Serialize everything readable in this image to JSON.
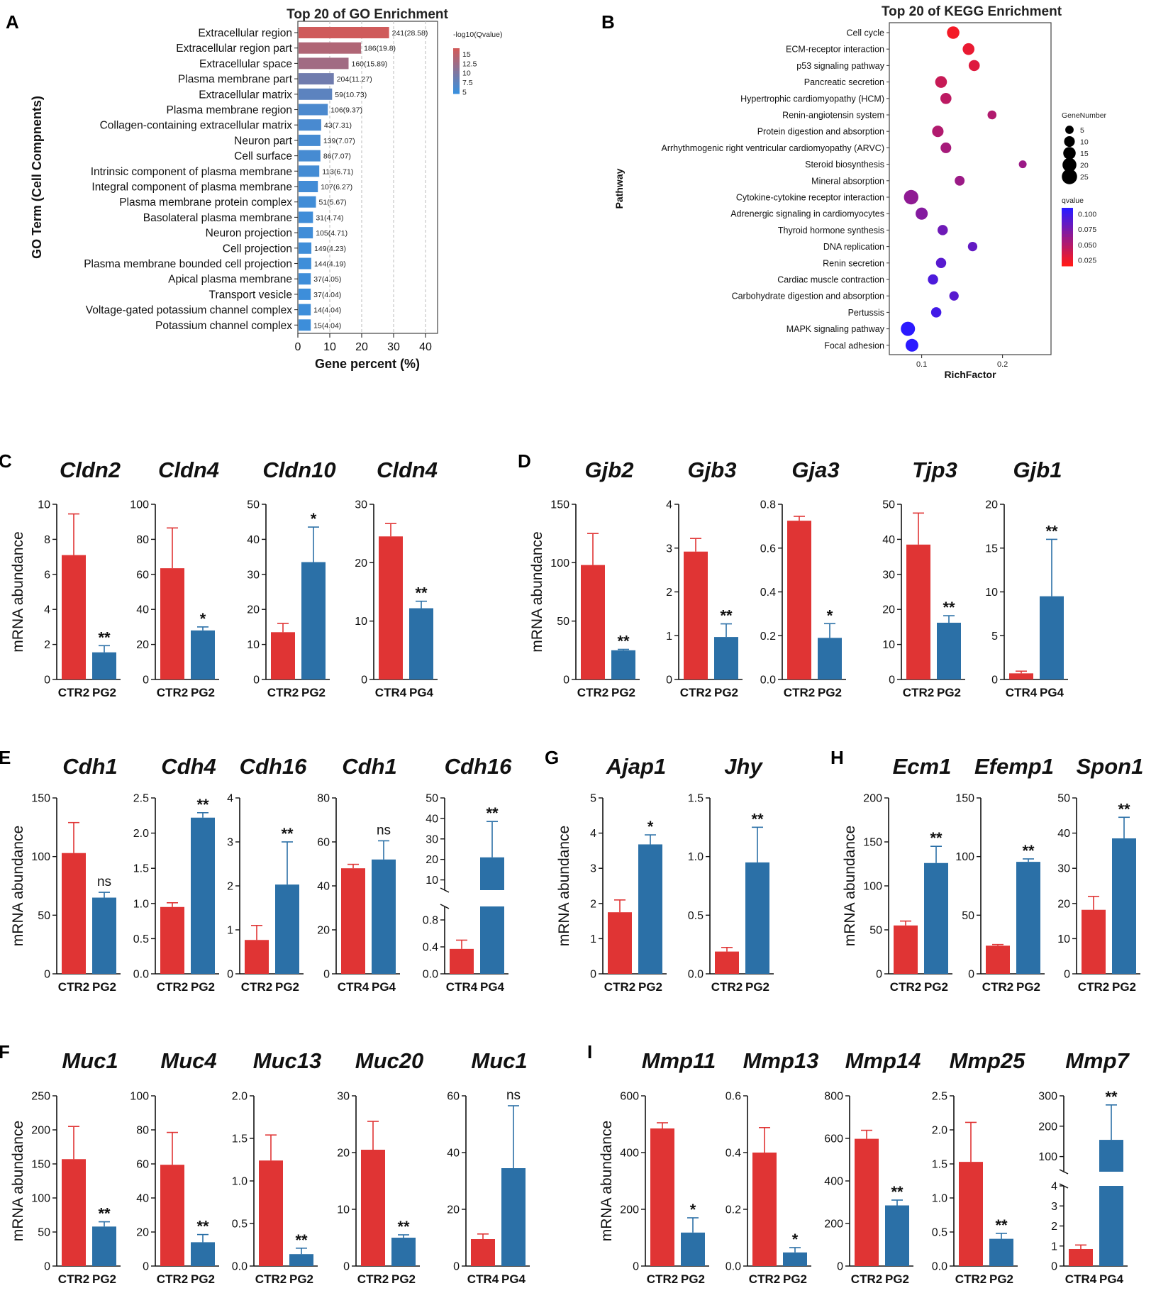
{
  "colors": {
    "ctr": "#e03434",
    "treat": "#2b70a7",
    "go_high": "#cf5b5b",
    "go_low": "#3b8fdc",
    "kegg_low": "#ff1a1a",
    "kegg_high": "#2b1aff"
  },
  "chart_data": [
    {
      "id": "A",
      "type": "bar",
      "orientation": "horizontal",
      "panel_label": "A",
      "title": "Top 20 of GO Enrichment",
      "xlabel": "Gene percent (%)",
      "ylabel": "GO Term (Cell Compnents)",
      "xlim": [
        0,
        40
      ],
      "xticks": [
        "0",
        "10",
        "20",
        "30",
        "40"
      ],
      "legend_title": "-log10(Qvalue)",
      "legend_values": [
        "15",
        "12.5",
        "10",
        "7.5",
        "5"
      ],
      "categories": [
        "Extracellular region",
        "Extracellular region part",
        "Extracellular space",
        "Plasma membrane part",
        "Extracellular matrix",
        "Plasma membrane region",
        "Collagen-containing extracellular matrix",
        "Neuron part",
        "Cell surface",
        "Intrinsic component of plasma membrane",
        "Integral component of plasma membrane",
        "Plasma membrane protein complex",
        "Basolateral plasma membrane",
        "Neuron projection",
        "Cell projection",
        "Plasma membrane bounded cell projection",
        "Apical plasma membrane",
        "Transport vesicle",
        "Voltage-gated potassium channel complex",
        "Potassium channel complex"
      ],
      "values": [
        28.58,
        19.8,
        15.89,
        11.27,
        10.73,
        9.37,
        7.31,
        7.07,
        7.07,
        6.71,
        6.27,
        5.67,
        4.74,
        4.71,
        4.23,
        4.19,
        4.05,
        4.04,
        4.04,
        4.04
      ],
      "gene_counts": [
        241,
        186,
        160,
        204,
        59,
        106,
        43,
        139,
        86,
        113,
        107,
        51,
        31,
        105,
        149,
        144,
        37,
        37,
        14,
        15
      ],
      "bar_labels": [
        "241(28.58)",
        "186(19.8)",
        "160(15.89)",
        "204(11.27)",
        "59(10.73)",
        "106(9.37)",
        "43(7.31)",
        "139(7.07)",
        "86(7.07)",
        "113(6.71)",
        "107(6.27)",
        "51(5.67)",
        "31(4.74)",
        "105(4.71)",
        "149(4.23)",
        "144(4.19)",
        "37(4.05)",
        "37(4.04)",
        "14(4.04)",
        "15(4.04)"
      ],
      "neglog10q": [
        16.5,
        14.0,
        12.8,
        8.8,
        7.2,
        5.8,
        5.6,
        5.4,
        5.4,
        5.2,
        5.1,
        5.0,
        4.9,
        4.9,
        4.8,
        4.8,
        4.8,
        4.7,
        4.7,
        4.7
      ]
    },
    {
      "id": "B",
      "type": "scatter",
      "subtype": "bubble",
      "panel_label": "B",
      "title": "Top 20 of KEGG Enrichment",
      "xlabel": "RichFactor",
      "ylabel": "Pathway",
      "xlim": [
        0.06,
        0.26
      ],
      "xticks": [
        "0.1",
        "0.2"
      ],
      "size_legend_title": "GeneNumber",
      "size_legend_values": [
        "5",
        "10",
        "15",
        "20",
        "25"
      ],
      "color_legend_title": "qvalue",
      "color_legend_values": [
        "0.100",
        "0.075",
        "0.050",
        "0.025"
      ],
      "pathways": [
        "Cell cycle",
        "ECM-receptor interaction",
        "p53 signaling pathway",
        "Pancreatic secretion",
        "Hypertrophic cardiomyopathy (HCM)",
        "Renin-angiotensin system",
        "Protein digestion and absorption",
        "Arrhythmogenic right ventricular cardiomyopathy (ARVC)",
        "Steroid biosynthesis",
        "Mineral absorption",
        "Cytokine-cytokine receptor interaction",
        "Adrenergic signaling in cardiomyocytes",
        "Thyroid hormone synthesis",
        "DNA replication",
        "Renin secretion",
        "Cardiac muscle contraction",
        "Carbohydrate digestion and absorption",
        "Pertussis",
        "MAPK signaling pathway",
        "Focal adhesion"
      ],
      "rich_factor": [
        0.139,
        0.158,
        0.165,
        0.124,
        0.13,
        0.187,
        0.12,
        0.13,
        0.225,
        0.147,
        0.087,
        0.1,
        0.126,
        0.163,
        0.124,
        0.114,
        0.14,
        0.118,
        0.083,
        0.088
      ],
      "gene_number": [
        15,
        13,
        11,
        13,
        11,
        6,
        12,
        10,
        4,
        8,
        22,
        14,
        9,
        7,
        9,
        9,
        7,
        9,
        21,
        16
      ],
      "qvalue": [
        0.02,
        0.025,
        0.03,
        0.04,
        0.045,
        0.05,
        0.05,
        0.055,
        0.06,
        0.06,
        0.065,
        0.07,
        0.08,
        0.085,
        0.09,
        0.095,
        0.09,
        0.1,
        0.11,
        0.11
      ]
    },
    {
      "id": "C1",
      "type": "bar",
      "panel_label": "C",
      "ylabel": "mRNA abundance",
      "title": "Cldn2",
      "categories": [
        "CTR2",
        "PG2"
      ],
      "values": [
        7.1,
        1.55
      ],
      "errors": [
        2.35,
        0.38
      ],
      "ylim": [
        0,
        10
      ],
      "yticks": [
        "0",
        "2",
        "4",
        "6",
        "8",
        "10"
      ],
      "sig": "**"
    },
    {
      "id": "C2",
      "type": "bar",
      "title": "Cldn4",
      "categories": [
        "CTR2",
        "PG2"
      ],
      "values": [
        63.5,
        28
      ],
      "errors": [
        23,
        2
      ],
      "ylim": [
        0,
        100
      ],
      "yticks": [
        "0",
        "20",
        "40",
        "60",
        "80",
        "100"
      ],
      "sig": "*"
    },
    {
      "id": "C3",
      "type": "bar",
      "title": "Cldn10",
      "categories": [
        "CTR2",
        "PG2"
      ],
      "values": [
        13.5,
        33.5
      ],
      "errors": [
        2.5,
        10
      ],
      "ylim": [
        0,
        50
      ],
      "yticks": [
        "0",
        "10",
        "20",
        "30",
        "40",
        "50"
      ],
      "sig": "*"
    },
    {
      "id": "C4",
      "type": "bar",
      "title": "Cldn4",
      "categories": [
        "CTR4",
        "PG4"
      ],
      "values": [
        24.5,
        12.2
      ],
      "errors": [
        2.2,
        1.2
      ],
      "ylim": [
        0,
        30
      ],
      "yticks": [
        "0",
        "10",
        "20",
        "30"
      ],
      "sig": "**"
    },
    {
      "id": "D1",
      "type": "bar",
      "panel_label": "D",
      "ylabel": "mRNA abundance",
      "title": "Gjb2",
      "categories": [
        "CTR2",
        "PG2"
      ],
      "values": [
        98,
        25
      ],
      "errors": [
        27,
        0.8
      ],
      "ylim": [
        0,
        150
      ],
      "yticks": [
        "0",
        "50",
        "100",
        "150"
      ],
      "sig": "**"
    },
    {
      "id": "D2",
      "type": "bar",
      "title": "Gjb3",
      "categories": [
        "CTR2",
        "PG2"
      ],
      "values": [
        2.92,
        0.97
      ],
      "errors": [
        0.3,
        0.3
      ],
      "ylim": [
        0,
        4
      ],
      "yticks": [
        "0",
        "1",
        "2",
        "3",
        "4"
      ],
      "sig": "**"
    },
    {
      "id": "D3",
      "type": "bar",
      "title": "Gja3",
      "categories": [
        "CTR2",
        "PG2"
      ],
      "values": [
        0.725,
        0.19
      ],
      "errors": [
        0.02,
        0.065
      ],
      "ylim": [
        0,
        0.8
      ],
      "yticks": [
        "0.0",
        "0.2",
        "0.4",
        "0.6",
        "0.8"
      ],
      "sig": "*"
    },
    {
      "id": "D4",
      "type": "bar",
      "title": "Tjp3",
      "categories": [
        "CTR2",
        "PG2"
      ],
      "values": [
        38.5,
        16.2
      ],
      "errors": [
        9,
        2
      ],
      "ylim": [
        0,
        50
      ],
      "yticks": [
        "0",
        "10",
        "20",
        "30",
        "40",
        "50"
      ],
      "sig": "**"
    },
    {
      "id": "D5",
      "type": "bar",
      "title": "Gjb1",
      "categories": [
        "CTR4",
        "PG4"
      ],
      "values": [
        0.7,
        9.5
      ],
      "errors": [
        0.25,
        6.5
      ],
      "ylim": [
        0,
        20
      ],
      "yticks": [
        "0",
        "5",
        "10",
        "15",
        "20"
      ],
      "sig": "**"
    },
    {
      "id": "E1",
      "type": "bar",
      "panel_label": "E",
      "ylabel": "mRNA abundance",
      "title": "Cdh1",
      "categories": [
        "CTR2",
        "PG2"
      ],
      "values": [
        103,
        65
      ],
      "errors": [
        26,
        4.5
      ],
      "ylim": [
        0,
        150
      ],
      "yticks": [
        "0",
        "50",
        "100",
        "150"
      ],
      "sig": "ns"
    },
    {
      "id": "E2",
      "type": "bar",
      "title": "Cdh4",
      "categories": [
        "CTR2",
        "PG2"
      ],
      "values": [
        0.95,
        2.22
      ],
      "errors": [
        0.06,
        0.07
      ],
      "ylim": [
        0,
        2.5
      ],
      "yticks": [
        "0.0",
        "0.5",
        "1.0",
        "1.5",
        "2.0",
        "2.5"
      ],
      "sig": "**"
    },
    {
      "id": "E3",
      "type": "bar",
      "title": "Cdh16",
      "categories": [
        "CTR2",
        "PG2"
      ],
      "values": [
        0.77,
        2.03
      ],
      "errors": [
        0.33,
        0.97
      ],
      "ylim": [
        0,
        4
      ],
      "yticks": [
        "0",
        "1",
        "2",
        "3",
        "4"
      ],
      "sig": "**"
    },
    {
      "id": "E4",
      "type": "bar",
      "title": "Cdh1",
      "categories": [
        "CTR4",
        "PG4"
      ],
      "values": [
        48,
        52
      ],
      "errors": [
        1.8,
        8.5
      ],
      "ylim": [
        0,
        80
      ],
      "yticks": [
        "0",
        "20",
        "40",
        "60",
        "80"
      ],
      "sig": "ns"
    },
    {
      "id": "E5",
      "type": "bar",
      "broken_axis": true,
      "title": "Cdh16",
      "categories": [
        "CTR4",
        "PG4"
      ],
      "values": [
        0.37,
        21
      ],
      "errors": [
        0.13,
        17.5
      ],
      "lower_range": [
        0,
        1.0
      ],
      "upper_range": [
        5,
        50
      ],
      "yticks_lower": [
        "0.0",
        "0.4",
        "0.8"
      ],
      "yticks_upper": [
        "10",
        "20",
        "30",
        "40",
        "50"
      ],
      "sig": "**"
    },
    {
      "id": "G1",
      "type": "bar",
      "panel_label": "G",
      "ylabel": "mRNA abundance",
      "title": "Ajap1",
      "categories": [
        "CTR2",
        "PG2"
      ],
      "values": [
        1.75,
        3.68
      ],
      "errors": [
        0.35,
        0.27
      ],
      "ylim": [
        0,
        5
      ],
      "yticks": [
        "0",
        "1",
        "2",
        "3",
        "4",
        "5"
      ],
      "sig": "*"
    },
    {
      "id": "G2",
      "type": "bar",
      "title": "Jhy",
      "categories": [
        "CTR2",
        "PG2"
      ],
      "values": [
        0.19,
        0.95
      ],
      "errors": [
        0.035,
        0.3
      ],
      "ylim": [
        0,
        1.5
      ],
      "yticks": [
        "0.0",
        "0.5",
        "1.0",
        "1.5"
      ],
      "sig": "**"
    },
    {
      "id": "H1",
      "type": "bar",
      "panel_label": "H",
      "ylabel": "mRNA abundance",
      "title": "Ecm1",
      "categories": [
        "CTR2",
        "PG2"
      ],
      "values": [
        55,
        126
      ],
      "errors": [
        5,
        19
      ],
      "ylim": [
        0,
        200
      ],
      "yticks": [
        "0",
        "50",
        "100",
        "150",
        "200"
      ],
      "sig": "**"
    },
    {
      "id": "H2",
      "type": "bar",
      "title": "Efemp1",
      "categories": [
        "CTR2",
        "PG2"
      ],
      "values": [
        24,
        95.5
      ],
      "errors": [
        1,
        2.5
      ],
      "ylim": [
        0,
        150
      ],
      "yticks": [
        "0",
        "50",
        "100",
        "150"
      ],
      "sig": "**"
    },
    {
      "id": "H3",
      "type": "bar",
      "title": "Spon1",
      "categories": [
        "CTR2",
        "PG2"
      ],
      "values": [
        18.2,
        38.5
      ],
      "errors": [
        3.8,
        6
      ],
      "ylim": [
        0,
        50
      ],
      "yticks": [
        "0",
        "10",
        "20",
        "30",
        "40",
        "50"
      ],
      "sig": "**"
    },
    {
      "id": "F1",
      "type": "bar",
      "panel_label": "F",
      "ylabel": "mRNA abundance",
      "title": "Muc1",
      "categories": [
        "CTR2",
        "PG2"
      ],
      "values": [
        157,
        58
      ],
      "errors": [
        48,
        7
      ],
      "ylim": [
        0,
        250
      ],
      "yticks": [
        "0",
        "50",
        "100",
        "150",
        "200",
        "250"
      ],
      "sig": "**"
    },
    {
      "id": "F2",
      "type": "bar",
      "title": "Muc4",
      "categories": [
        "CTR2",
        "PG2"
      ],
      "values": [
        59.5,
        14
      ],
      "errors": [
        19,
        4.5
      ],
      "ylim": [
        0,
        100
      ],
      "yticks": [
        "0",
        "20",
        "40",
        "60",
        "80",
        "100"
      ],
      "sig": "**"
    },
    {
      "id": "F3",
      "type": "bar",
      "title": "Muc13",
      "categories": [
        "CTR2",
        "PG2"
      ],
      "values": [
        1.24,
        0.14
      ],
      "errors": [
        0.3,
        0.07
      ],
      "ylim": [
        0,
        2.0
      ],
      "yticks": [
        "0.0",
        "0.5",
        "1.0",
        "1.5",
        "2.0"
      ],
      "sig": "**"
    },
    {
      "id": "F4",
      "type": "bar",
      "title": "Muc20",
      "categories": [
        "CTR2",
        "PG2"
      ],
      "values": [
        20.5,
        5
      ],
      "errors": [
        5,
        0.5
      ],
      "ylim": [
        0,
        30
      ],
      "yticks": [
        "0",
        "10",
        "20",
        "30"
      ],
      "sig": "**"
    },
    {
      "id": "F5",
      "type": "bar",
      "title": "Muc1",
      "categories": [
        "CTR4",
        "PG4"
      ],
      "values": [
        9.5,
        34.5
      ],
      "errors": [
        1.8,
        22
      ],
      "ylim": [
        0,
        60
      ],
      "yticks": [
        "0",
        "20",
        "40",
        "60"
      ],
      "sig": "ns"
    },
    {
      "id": "I1",
      "type": "bar",
      "panel_label": "I",
      "ylabel": "mRNA abundance",
      "title": "Mmp11",
      "categories": [
        "CTR2",
        "PG2"
      ],
      "values": [
        485,
        118
      ],
      "errors": [
        20,
        52
      ],
      "ylim": [
        0,
        600
      ],
      "yticks": [
        "0",
        "200",
        "400",
        "600"
      ],
      "sig": "*"
    },
    {
      "id": "I2",
      "type": "bar",
      "title": "Mmp13",
      "categories": [
        "CTR2",
        "PG2"
      ],
      "values": [
        0.4,
        0.048
      ],
      "errors": [
        0.088,
        0.017
      ],
      "ylim": [
        0,
        0.6
      ],
      "yticks": [
        "0.0",
        "0.2",
        "0.4",
        "0.6"
      ],
      "sig": "*"
    },
    {
      "id": "I3",
      "type": "bar",
      "title": "Mmp14",
      "categories": [
        "CTR2",
        "PG2"
      ],
      "values": [
        598,
        285
      ],
      "errors": [
        40,
        25
      ],
      "ylim": [
        0,
        800
      ],
      "yticks": [
        "0",
        "200",
        "400",
        "600",
        "800"
      ],
      "sig": "**"
    },
    {
      "id": "I4",
      "type": "bar",
      "title": "Mmp25",
      "categories": [
        "CTR2",
        "PG2"
      ],
      "values": [
        1.53,
        0.4
      ],
      "errors": [
        0.58,
        0.08
      ],
      "ylim": [
        0,
        2.5
      ],
      "yticks": [
        "0.0",
        "0.5",
        "1.0",
        "1.5",
        "2.0",
        "2.5"
      ],
      "sig": "**"
    },
    {
      "id": "I5",
      "type": "bar",
      "broken_axis": true,
      "title": "Mmp7",
      "categories": [
        "CTR4",
        "PG4"
      ],
      "values": [
        0.85,
        155
      ],
      "errors": [
        0.2,
        115
      ],
      "lower_range": [
        0,
        4
      ],
      "upper_range": [
        50,
        300
      ],
      "yticks_lower": [
        "0",
        "1",
        "2",
        "3",
        "4"
      ],
      "yticks_upper": [
        "100",
        "200",
        "300"
      ],
      "sig": "**"
    }
  ]
}
